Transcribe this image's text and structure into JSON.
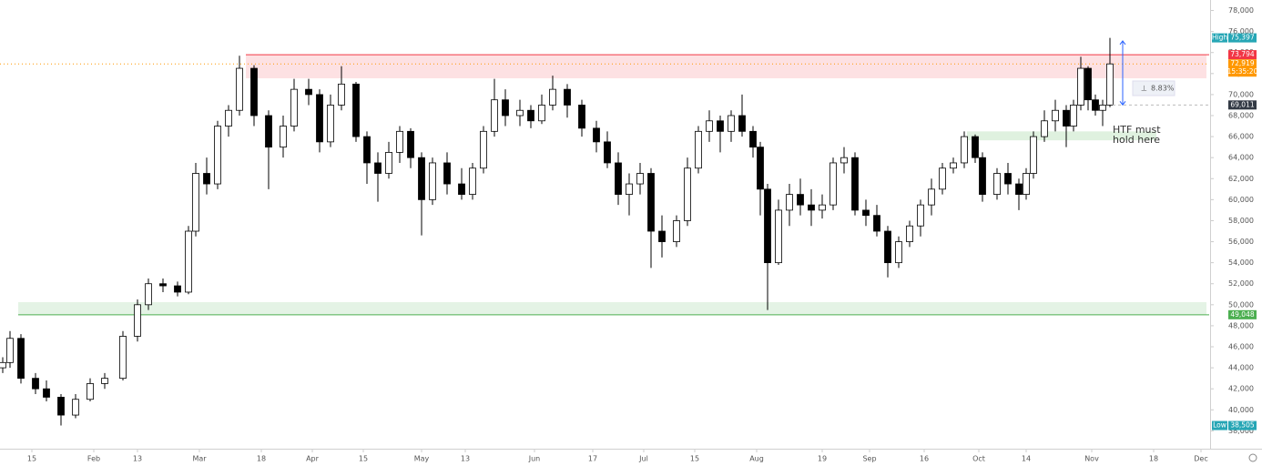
{
  "chart_data": {
    "type": "candlestick",
    "xlim": [
      5.25,
      337.25
    ],
    "xticks": [
      {
        "value": 14,
        "label": "15"
      },
      {
        "value": 31,
        "label": "Feb"
      },
      {
        "value": 43,
        "label": "13"
      },
      {
        "value": 60,
        "label": "Mar"
      },
      {
        "value": 77,
        "label": "18"
      },
      {
        "value": 91,
        "label": "Apr"
      },
      {
        "value": 105,
        "label": "15"
      },
      {
        "value": 121,
        "label": "May"
      },
      {
        "value": 133,
        "label": "13"
      },
      {
        "value": 152,
        "label": "Jun"
      },
      {
        "value": 168,
        "label": "17"
      },
      {
        "value": 182,
        "label": "Jul"
      },
      {
        "value": 196,
        "label": "15"
      },
      {
        "value": 213,
        "label": "Aug"
      },
      {
        "value": 231,
        "label": "19"
      },
      {
        "value": 244,
        "label": "Sep"
      },
      {
        "value": 259,
        "label": "16"
      },
      {
        "value": 274,
        "label": "Oct"
      },
      {
        "value": 287,
        "label": "14"
      },
      {
        "value": 305,
        "label": "Nov"
      },
      {
        "value": 322,
        "label": "18"
      },
      {
        "value": 335,
        "label": "Dec"
      }
    ],
    "ylim": [
      36300,
      79000
    ],
    "yticks": [
      {
        "value": 38000,
        "label": "38,000"
      },
      {
        "value": 40000,
        "label": "40,000"
      },
      {
        "value": 42000,
        "label": "42,000"
      },
      {
        "value": 44000,
        "label": "44,000"
      },
      {
        "value": 46000,
        "label": "46,000"
      },
      {
        "value": 48000,
        "label": "48,000"
      },
      {
        "value": 50000,
        "label": "50,000"
      },
      {
        "value": 52000,
        "label": "52,000"
      },
      {
        "value": 54000,
        "label": "54,000"
      },
      {
        "value": 56000,
        "label": "56,000"
      },
      {
        "value": 58000,
        "label": "58,000"
      },
      {
        "value": 60000,
        "label": "60,000"
      },
      {
        "value": 62000,
        "label": "62,000"
      },
      {
        "value": 64000,
        "label": "64,000"
      },
      {
        "value": 66000,
        "label": "66,000"
      },
      {
        "value": 68000,
        "label": "68,000"
      },
      {
        "value": 70000,
        "label": "70,000"
      },
      {
        "value": 72000,
        "label": "72,000"
      },
      {
        "value": 74000,
        "label": "74,000"
      },
      {
        "value": 76000,
        "label": "76,000"
      },
      {
        "value": 78000,
        "label": "78,000"
      }
    ],
    "grid": false,
    "up_color": "#ffffff",
    "down_color": "#000000",
    "x": [
      6,
      8,
      11,
      15,
      18,
      22,
      26,
      30,
      34,
      39,
      43,
      46,
      50,
      54,
      57,
      59,
      62,
      65,
      68,
      71,
      75,
      79,
      83,
      86,
      90,
      93,
      96,
      99,
      103,
      106,
      109,
      112,
      115,
      118,
      121,
      124,
      128,
      132,
      135,
      138,
      141,
      144,
      148,
      151,
      154,
      157,
      161,
      165,
      169,
      172,
      175,
      178,
      181,
      184,
      187,
      191,
      194,
      197,
      200,
      203,
      206,
      209,
      212,
      214,
      216,
      219,
      222,
      225,
      228,
      231,
      234,
      237,
      240,
      243,
      246,
      249,
      252,
      255,
      258,
      261,
      264,
      267,
      270,
      273,
      275,
      279,
      282,
      285,
      287,
      289,
      292,
      295,
      298,
      300,
      302,
      304,
      306,
      308,
      310
    ],
    "open": [
      44000,
      44500,
      46800,
      43000,
      42000,
      41200,
      39500,
      41000,
      42500,
      43000,
      47000,
      50000,
      52000,
      51800,
      51200,
      57000,
      62500,
      61500,
      67000,
      68500,
      72500,
      68000,
      65000,
      67000,
      70500,
      70000,
      65500,
      69000,
      71000,
      66000,
      63500,
      62500,
      64500,
      66500,
      64000,
      60000,
      63500,
      61500,
      60500,
      63000,
      66500,
      69500,
      68000,
      68500,
      67500,
      69000,
      70500,
      69000,
      66800,
      65500,
      63500,
      60500,
      61500,
      62500,
      57000,
      56000,
      58000,
      63000,
      66500,
      67500,
      66500,
      68000,
      66500,
      65000,
      61000,
      54000,
      59000,
      60500,
      59500,
      59000,
      59500,
      63500,
      64000,
      59000,
      58500,
      57000,
      54000,
      56000,
      57500,
      59500,
      61000,
      63000,
      63500,
      66000,
      64000,
      60500,
      62500,
      61500,
      60500,
      62500,
      66000,
      67500,
      68500,
      67000,
      69000,
      72500,
      69500,
      68500,
      69000
    ],
    "high": [
      45000,
      47500,
      47200,
      43500,
      42800,
      41500,
      41500,
      43000,
      43500,
      47500,
      50500,
      52500,
      52500,
      52200,
      57500,
      63500,
      64000,
      67500,
      69000,
      73700,
      72800,
      68500,
      68000,
      71500,
      71500,
      70500,
      70000,
      72700,
      71200,
      66500,
      64500,
      65500,
      67000,
      66800,
      64500,
      64000,
      64500,
      63000,
      63500,
      67000,
      71500,
      70500,
      69500,
      69000,
      70000,
      71800,
      71000,
      69500,
      67500,
      66500,
      64500,
      62500,
      63500,
      63000,
      58500,
      58500,
      64000,
      67000,
      68500,
      68000,
      68500,
      70000,
      67000,
      65500,
      61500,
      60000,
      61500,
      62000,
      61000,
      60500,
      64000,
      65000,
      64500,
      60000,
      59500,
      57500,
      56500,
      58000,
      60000,
      62000,
      63500,
      64000,
      66500,
      66200,
      64500,
      63000,
      63500,
      62000,
      63000,
      66500,
      68500,
      69500,
      69000,
      69500,
      73600,
      72700,
      70000,
      69500,
      75397
    ],
    "low": [
      43500,
      44000,
      42500,
      41500,
      40800,
      38505,
      39200,
      40800,
      42000,
      42800,
      46500,
      49500,
      51200,
      50800,
      51000,
      56500,
      60500,
      61000,
      66000,
      68000,
      67000,
      61000,
      64000,
      66500,
      69000,
      64500,
      65000,
      68500,
      65500,
      61500,
      59800,
      62000,
      63500,
      63000,
      56600,
      59500,
      60500,
      60000,
      60000,
      62500,
      66000,
      67000,
      67000,
      66800,
      67200,
      68500,
      67800,
      66000,
      64500,
      63000,
      59500,
      58500,
      60500,
      53500,
      54500,
      55500,
      57500,
      62500,
      65500,
      64500,
      65500,
      66000,
      64000,
      58500,
      49500,
      53800,
      57500,
      58500,
      57500,
      58200,
      59000,
      62500,
      58500,
      57500,
      56500,
      52600,
      53500,
      55500,
      56500,
      58500,
      60500,
      62500,
      63000,
      63500,
      59800,
      60000,
      60500,
      59000,
      60000,
      62000,
      65500,
      66500,
      65000,
      66500,
      68500,
      68500,
      68000,
      67000,
      68800
    ],
    "close": [
      44500,
      46800,
      43000,
      42000,
      41200,
      39500,
      41000,
      42500,
      43000,
      47000,
      50000,
      52000,
      51800,
      51200,
      57000,
      62500,
      61500,
      67000,
      68500,
      72500,
      68000,
      65000,
      67000,
      70500,
      70000,
      65500,
      69000,
      71000,
      66000,
      63500,
      62500,
      64500,
      66500,
      64000,
      60000,
      63500,
      61500,
      60500,
      63000,
      66500,
      69500,
      68000,
      68500,
      67500,
      69000,
      70500,
      69000,
      66800,
      65500,
      63500,
      60500,
      61500,
      62500,
      57000,
      56000,
      58000,
      63000,
      66500,
      67500,
      66500,
      68000,
      66500,
      65000,
      61000,
      54000,
      59000,
      60500,
      59500,
      59000,
      59500,
      63500,
      64000,
      59000,
      58500,
      57000,
      54000,
      56000,
      57500,
      59500,
      61000,
      63000,
      63500,
      66000,
      64000,
      60500,
      62500,
      61500,
      60500,
      62500,
      66000,
      67500,
      68500,
      67000,
      69000,
      72500,
      69500,
      68500,
      69000,
      72919
    ],
    "high_label": {
      "text": "High",
      "value": 75397,
      "label": "75,397",
      "color": "#26a6b5"
    },
    "low_label": {
      "text": "Low",
      "value": 38505,
      "label": "38,505",
      "color": "#26a6b5"
    },
    "resistance": {
      "value": 73794,
      "label": "73,794",
      "zone": [
        71550,
        73794
      ],
      "color": "#f23645"
    },
    "support": {
      "value": 49048,
      "label": "49,048",
      "zone": [
        49048,
        50250
      ],
      "color": "#4caf50"
    },
    "hold_zone": {
      "zone": [
        65650,
        66500
      ],
      "text": "HTF must hold here",
      "color": "#4caf50"
    },
    "last_price": {
      "value": 72919,
      "label": "72,919",
      "countdown": "15:35:20",
      "color": "#ff9800"
    },
    "measure": {
      "from": 69011,
      "from_label": "69,011",
      "to": 75105,
      "percent": 8.83,
      "percent_label": "8.83%",
      "color": "#2962ff"
    }
  }
}
